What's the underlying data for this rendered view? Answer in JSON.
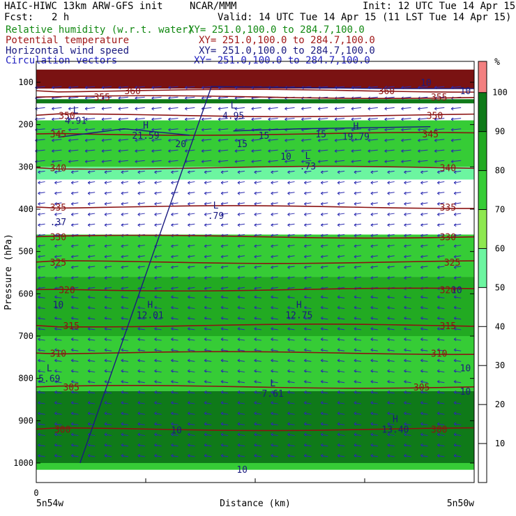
{
  "header": {
    "model": "HAIC-HIWC 13km ARW-GFS init",
    "org": "NCAR/MMM",
    "init": "Init: 12 UTC Tue 14 Apr 15",
    "fcst_label": "Fcst:",
    "fcst_value": "2 h",
    "valid": "Valid: 14 UTC Tue 14 Apr 15 (11 LST Tue 14 Apr 15)"
  },
  "legend": [
    {
      "name": "Relative humidity (w.r.t. water)",
      "xy": "XY= 251.0,100.0 to 284.7,100.0",
      "color": "#118811"
    },
    {
      "name": "Potential temperature",
      "xy": "XY= 251.0,100.0 to 284.7,100.0",
      "color": "#a01818"
    },
    {
      "name": "Horizontal wind speed",
      "xy": "XY= 251.0,100.0 to 284.7,100.0",
      "color": "#1a1a80"
    },
    {
      "name": "Circulation vectors",
      "xy": "XY= 251.0,100.0 to 284.7,100.0",
      "color": "#2020c0"
    }
  ],
  "colorbar": {
    "unit": "%",
    "ticks": [
      "10",
      "20",
      "30",
      "40",
      "50",
      "60",
      "70",
      "80",
      "90",
      "100"
    ],
    "levels": [
      {
        "lo": 0,
        "hi": 50,
        "color": "#ffffff"
      },
      {
        "lo": 50,
        "hi": 60,
        "color": "#6cf5a0"
      },
      {
        "lo": 60,
        "hi": 70,
        "color": "#8ee850"
      },
      {
        "lo": 70,
        "hi": 80,
        "color": "#36cc36"
      },
      {
        "lo": 80,
        "hi": 90,
        "color": "#22aa22"
      },
      {
        "lo": 90,
        "hi": 100,
        "color": "#0f7a19"
      },
      {
        "lo": 100,
        "hi": 108,
        "color": "#f38080"
      }
    ]
  },
  "chart_data": {
    "type": "cross-section",
    "ylabel": "Pressure (hPa)",
    "xlabel": "Distance (km)",
    "x_start_tick": "0",
    "x_left_label": "5n54w",
    "x_right_label": "5n50w",
    "ylim": [
      1050,
      70
    ],
    "y_ticks": [
      100,
      200,
      300,
      400,
      500,
      600,
      700,
      800,
      900,
      1000
    ],
    "x_ticks": [
      0,
      0.25,
      0.5,
      0.75,
      1.0
    ],
    "rh_bands": [
      {
        "p_top": 70,
        "p_bot": 115,
        "rh": 105,
        "note": "dark-red top"
      },
      {
        "p_top": 115,
        "p_bot": 140,
        "rh": 40
      },
      {
        "p_top": 140,
        "p_bot": 150,
        "rh": 90
      },
      {
        "p_top": 150,
        "p_bot": 190,
        "rh": 40
      },
      {
        "p_top": 190,
        "p_bot": 215,
        "rh": 70
      },
      {
        "p_top": 215,
        "p_bot": 250,
        "rh": 75
      },
      {
        "p_top": 250,
        "p_bot": 300,
        "rh": 70
      },
      {
        "p_top": 300,
        "p_bot": 330,
        "rh": 55
      },
      {
        "p_top": 330,
        "p_bot": 460,
        "rh": 30
      },
      {
        "p_top": 460,
        "p_bot": 560,
        "rh": 70
      },
      {
        "p_top": 560,
        "p_bot": 700,
        "rh": 80
      },
      {
        "p_top": 700,
        "p_bot": 830,
        "rh": 75
      },
      {
        "p_top": 830,
        "p_bot": 1000,
        "rh": 92
      },
      {
        "p_top": 1000,
        "p_bot": 1016,
        "rh": 75
      }
    ],
    "theta_contours": [
      {
        "value": 360,
        "p": 120,
        "label_x": 0.22,
        "label_x2": 0.8
      },
      {
        "value": 355,
        "p": 135,
        "label_x": 0.15,
        "label_x2": 0.92
      },
      {
        "value": 350,
        "p": 178,
        "label_x": 0.07,
        "label_x2": 0.91
      },
      {
        "value": 345,
        "p": 222,
        "label_x": 0.05,
        "label_x2": 0.9
      },
      {
        "value": 340,
        "p": 302,
        "label_x": 0.05,
        "label_x2": 0.94
      },
      {
        "value": 335,
        "p": 395,
        "label_x": 0.05,
        "label_x2": 0.94
      },
      {
        "value": 330,
        "p": 465,
        "label_x": 0.05,
        "label_x2": 0.94
      },
      {
        "value": 325,
        "p": 525,
        "label_x": 0.05,
        "label_x2": 0.95
      },
      {
        "value": 320,
        "p": 590,
        "label_x": 0.07,
        "label_x2": 0.94
      },
      {
        "value": 315,
        "p": 675,
        "label_x": 0.08,
        "label_x2": 0.94
      },
      {
        "value": 310,
        "p": 740,
        "label_x": 0.05,
        "label_x2": 0.92
      },
      {
        "value": 305,
        "p": 820,
        "label_x": 0.08,
        "label_x2": 0.88
      },
      {
        "value": 300,
        "p": 920,
        "label_x": 0.06,
        "label_x2": 0.92
      }
    ],
    "wind_contours": [
      {
        "value": 10,
        "points": [
          [
            0.1,
            1000
          ],
          [
            0.4,
            110
          ],
          [
            0.8,
            115
          ],
          [
            1.0,
            115
          ]
        ]
      },
      {
        "value": 15,
        "points": [
          [
            0.45,
            215
          ],
          [
            0.6,
            210
          ],
          [
            0.9,
            205
          ]
        ]
      },
      {
        "value": 20,
        "points": [
          [
            0.05,
            230
          ],
          [
            0.2,
            210
          ],
          [
            0.35,
            225
          ]
        ]
      }
    ],
    "wind_labels": [
      {
        "value": "10",
        "x": 0.89,
        "p": 100
      },
      {
        "value": "10",
        "x": 0.57,
        "p": 275
      },
      {
        "value": "15",
        "x": 0.52,
        "p": 225
      },
      {
        "value": "15",
        "x": 0.65,
        "p": 222
      },
      {
        "value": "20",
        "x": 0.33,
        "p": 245
      },
      {
        "value": "15",
        "x": 0.47,
        "p": 245
      },
      {
        "value": "10",
        "x": 0.05,
        "p": 625
      },
      {
        "value": "10",
        "x": 0.96,
        "p": 590
      },
      {
        "value": "10",
        "x": 0.98,
        "p": 775
      },
      {
        "value": "10",
        "x": 0.98,
        "p": 830
      },
      {
        "value": "10",
        "x": 0.32,
        "p": 922
      },
      {
        "value": "10",
        "x": 0.47,
        "p": 1015
      },
      {
        "value": "10",
        "x": 0.98,
        "p": 120
      }
    ],
    "extrema": [
      {
        "type": "L",
        "value": "4.91",
        "x": 0.09,
        "p": 180
      },
      {
        "type": "L",
        "value": "4.95",
        "x": 0.45,
        "p": 168
      },
      {
        "type": "H",
        "value": "21.59",
        "x": 0.25,
        "p": 215
      },
      {
        "type": "H",
        "value": "19.79",
        "x": 0.73,
        "p": 218
      },
      {
        "type": "L",
        "value": ".73",
        "x": 0.62,
        "p": 288
      },
      {
        "type": "L",
        "value": ".79",
        "x": 0.41,
        "p": 405
      },
      {
        "type": "",
        "value": ".37",
        "x": 0.05,
        "p": 420
      },
      {
        "type": "H",
        "value": "12.01",
        "x": 0.26,
        "p": 640
      },
      {
        "type": "H",
        "value": "12.75",
        "x": 0.6,
        "p": 640
      },
      {
        "type": "L",
        "value": "5.69",
        "x": 0.03,
        "p": 790
      },
      {
        "type": "L",
        "value": "7.61",
        "x": 0.54,
        "p": 825
      },
      {
        "type": "H",
        "value": "13.40",
        "x": 0.82,
        "p": 910
      }
    ]
  }
}
